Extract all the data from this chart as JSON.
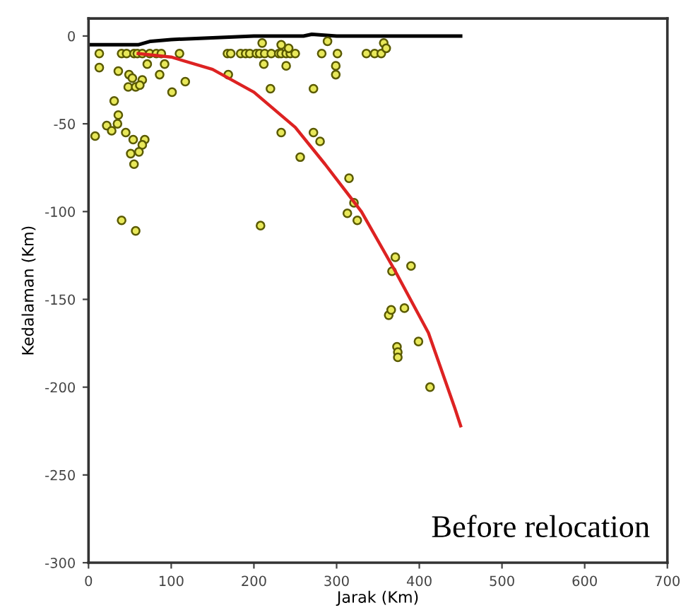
{
  "chart_data": {
    "type": "scatter",
    "xlabel": "Jarak (Km)",
    "ylabel": "Kedalaman (Km)",
    "xlim": [
      0,
      700
    ],
    "ylim": [
      -300,
      10
    ],
    "xticks": [
      0,
      100,
      200,
      300,
      400,
      500,
      600,
      700
    ],
    "yticks": [
      -300,
      -250,
      -200,
      -150,
      -100,
      -50,
      0
    ],
    "annotations": [
      "Before relocation"
    ],
    "series": [
      {
        "type": "line",
        "color": "#000000",
        "marker": "none",
        "x": [
          0,
          60,
          75,
          100,
          150,
          200,
          260,
          270,
          300,
          450
        ],
        "values": [
          -5,
          -5,
          -3,
          -2,
          -1,
          0,
          0,
          1,
          0,
          0
        ]
      },
      {
        "color": "#e8e85a",
        "marker": "circle",
        "x": [
          13,
          40,
          46,
          55,
          59,
          65,
          74,
          82,
          88,
          110,
          168,
          172,
          184,
          190,
          195,
          203,
          207,
          213,
          221,
          230,
          233,
          239,
          244,
          250,
          282,
          301,
          336,
          346,
          354,
          210,
          233,
          242,
          289,
          357,
          360,
          13,
          36,
          49,
          53,
          65,
          48,
          57,
          62,
          86,
          71,
          92,
          117,
          101,
          169,
          220,
          272,
          299,
          299,
          212,
          239,
          31,
          36,
          35,
          22,
          28,
          8,
          45,
          54,
          68,
          65,
          61,
          51,
          55,
          233,
          272,
          280,
          256,
          315,
          321,
          313,
          325,
          40,
          57,
          208,
          371,
          390,
          367,
          363,
          366,
          382,
          399,
          373,
          374,
          374,
          413
        ],
        "values": [
          -10,
          -10,
          -10,
          -10,
          -10,
          -10,
          -10,
          -10,
          -10,
          -10,
          -10,
          -10,
          -10,
          -10,
          -10,
          -10,
          -10,
          -10,
          -10,
          -10,
          -10,
          -10,
          -10,
          -10,
          -10,
          -10,
          -10,
          -10,
          -10,
          -4,
          -5,
          -7,
          -3,
          -4,
          -7,
          -18,
          -20,
          -22,
          -24,
          -25,
          -29,
          -29,
          -28,
          -22,
          -16,
          -16,
          -26,
          -32,
          -22,
          -30,
          -30,
          -17,
          -22,
          -16,
          -17,
          -37,
          -45,
          -50,
          -51,
          -54,
          -57,
          -55,
          -59,
          -59,
          -62,
          -66,
          -67,
          -73,
          -55,
          -55,
          -60,
          -69,
          -81,
          -95,
          -101,
          -105,
          -105,
          -111,
          -108,
          -126,
          -131,
          -134,
          -159,
          -156,
          -155,
          -174,
          -177,
          -180,
          -183,
          -200
        ]
      },
      {
        "type": "line",
        "color": "#dd2222",
        "marker": "none",
        "x": [
          60,
          100,
          150,
          200,
          250,
          286,
          330,
          371,
          411,
          443,
          450
        ],
        "values": [
          -10,
          -12,
          -19,
          -32,
          -52,
          -73,
          -100,
          -134,
          -169,
          -212,
          -222
        ]
      }
    ]
  }
}
